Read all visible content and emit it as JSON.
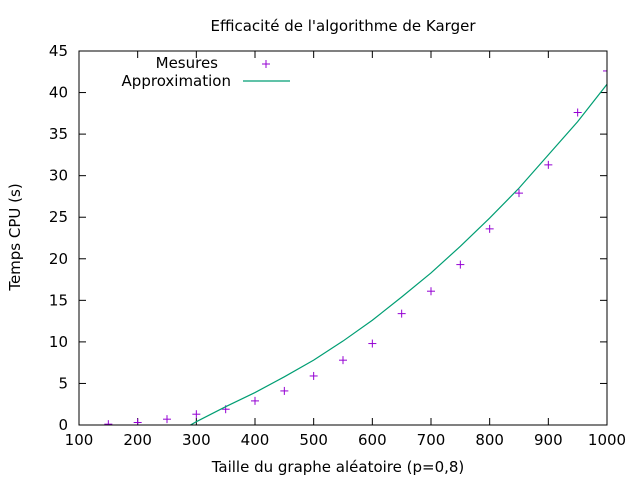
{
  "chart_data": {
    "type": "scatter",
    "title": "Efficacité de l'algorithme de Karger",
    "xlabel": "Taille du graphe aléatoire (p=0,8)",
    "ylabel": "Temps CPU (s)",
    "xlim": [
      100,
      1000
    ],
    "ylim": [
      0,
      45
    ],
    "x_ticks": [
      "100",
      "200",
      "300",
      "400",
      "500",
      "600",
      "700",
      "800",
      "900",
      "1000"
    ],
    "y_ticks": [
      "0",
      "5",
      "10",
      "15",
      "20",
      "25",
      "30",
      "35",
      "40",
      "45"
    ],
    "grid": false,
    "legend_position": "top-left",
    "series": [
      {
        "name": "Mesures",
        "kind": "points",
        "marker": "plus",
        "color": "#9400d3",
        "x": [
          100,
          150,
          200,
          250,
          300,
          350,
          400,
          450,
          500,
          550,
          600,
          650,
          700,
          750,
          800,
          850,
          900,
          950,
          1000
        ],
        "y": [
          0.0,
          0.1,
          0.3,
          0.7,
          1.3,
          1.9,
          2.9,
          4.1,
          5.9,
          7.8,
          9.8,
          13.4,
          16.1,
          19.3,
          23.6,
          27.9,
          31.3,
          37.6,
          42.6
        ]
      },
      {
        "name": "Approximation",
        "kind": "line",
        "color": "#009e73",
        "x": [
          290,
          300,
          350,
          400,
          450,
          500,
          550,
          600,
          650,
          700,
          750,
          800,
          850,
          900,
          950,
          1000
        ],
        "y": [
          0.0,
          0.4,
          2.2,
          3.9,
          5.8,
          7.8,
          10.1,
          12.6,
          15.4,
          18.3,
          21.5,
          24.9,
          28.5,
          32.5,
          36.5,
          41.0
        ]
      }
    ]
  }
}
